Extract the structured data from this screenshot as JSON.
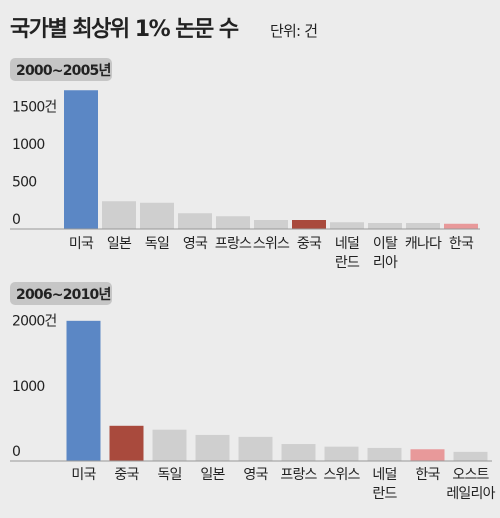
{
  "title": "국가별 최상위 1% 논문 수",
  "unit": "단위: 건",
  "chart_data": [
    {
      "type": "bar",
      "subtitle": "2000~2005년",
      "categories": [
        "미국",
        "일본",
        "독일",
        "영국",
        "프랑스",
        "스위스",
        "중국",
        "네덜\n란드",
        "이탈\n리아",
        "캐나다",
        "한국"
      ],
      "values": [
        1850,
        370,
        350,
        210,
        170,
        120,
        120,
        90,
        80,
        80,
        70
      ],
      "colors": [
        "#5b87c5",
        "#cfcfcf",
        "#cfcfcf",
        "#cfcfcf",
        "#cfcfcf",
        "#cfcfcf",
        "#a94a3d",
        "#cfcfcf",
        "#cfcfcf",
        "#cfcfcf",
        "#e8999a"
      ],
      "ylim": [
        0,
        2000
      ],
      "yticks": [
        0,
        500,
        1000,
        {
          "value": 1500,
          "label": "1500건"
        }
      ],
      "grid": false
    },
    {
      "type": "bar",
      "subtitle": "2006~2010년",
      "categories": [
        "미국",
        "중국",
        "독일",
        "일본",
        "영국",
        "프랑스",
        "스위스",
        "네덜\n란드",
        "한국",
        "오스트\n레일리아"
      ],
      "values": [
        2150,
        540,
        480,
        400,
        370,
        260,
        220,
        200,
        180,
        140
      ],
      "colors": [
        "#5b87c5",
        "#a94a3d",
        "#cfcfcf",
        "#cfcfcf",
        "#cfcfcf",
        "#cfcfcf",
        "#cfcfcf",
        "#cfcfcf",
        "#e8999a",
        "#cfcfcf"
      ],
      "ylim": [
        0,
        2500
      ],
      "yticks": [
        0,
        1000,
        {
          "value": 2000,
          "label": "2000건"
        }
      ],
      "grid": false
    }
  ]
}
